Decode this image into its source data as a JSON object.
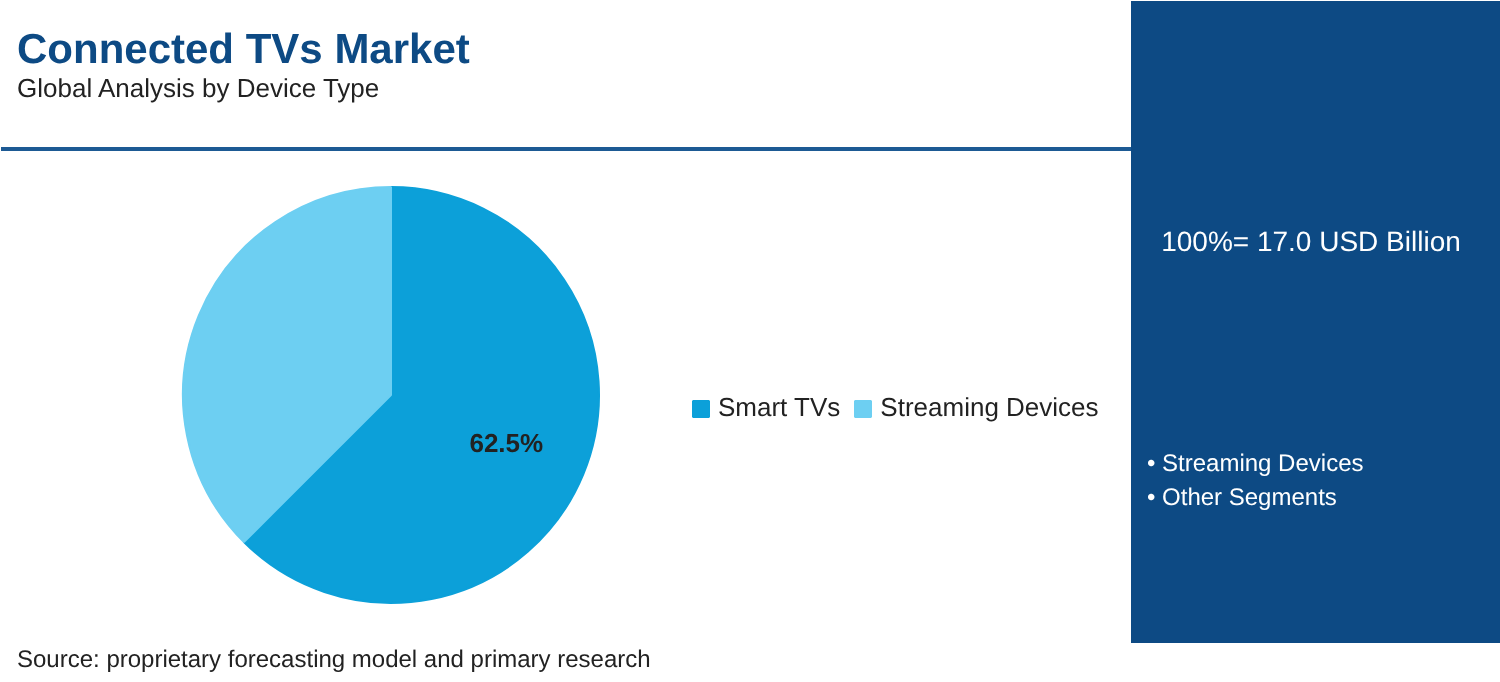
{
  "chart_data": {
    "type": "pie",
    "title": "Connected TVs Market",
    "subtitle": "Global Analysis by Device Type",
    "categories": [
      "Smart TVs",
      "Streaming Devices"
    ],
    "values": [
      62.5,
      37.5
    ],
    "colors": [
      "#0ca0d9",
      "#6dcff2"
    ],
    "value_labels": [
      "62.5%",
      null
    ],
    "legend": "right",
    "annotations": [
      "100%= 17.0 USD Billion",
      "• Streaming Devices",
      "• Other Segments",
      "Source: proprietary forecasting model and primary research"
    ]
  }
}
